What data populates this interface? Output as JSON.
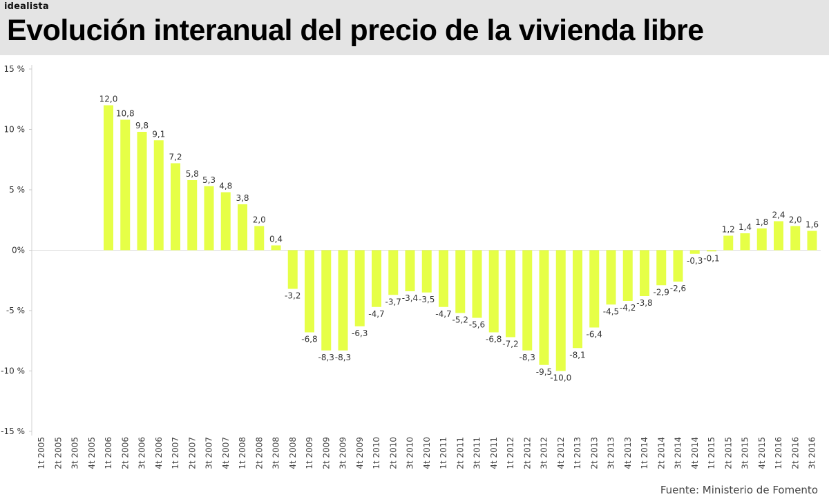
{
  "brand": "idealista",
  "source": "Fuente: Ministerio de Fomento",
  "chart_data": {
    "type": "bar",
    "title": "Evolución interanual del precio de la vivienda libre",
    "xlabel": "",
    "ylabel": "",
    "ylim": [
      -15,
      15
    ],
    "yticks": [
      15,
      10,
      5,
      0,
      -5,
      -10,
      -15
    ],
    "ytick_labels": [
      "15 %",
      "10 %",
      "5 %",
      "0%",
      "-5 %",
      "-10 %",
      "-15 %"
    ],
    "grid": false,
    "bar_color": "#e6ff47",
    "categories": [
      "1t 2005",
      "2t 2005",
      "3t 2005",
      "4t 2005",
      "1t 2006",
      "2t 2006",
      "3t 2006",
      "4t 2006",
      "1t 2007",
      "2t 2007",
      "3t 2007",
      "4t 2007",
      "1t 2008",
      "2t 2008",
      "3t 2008",
      "4t 2008",
      "1t 2009",
      "2t 2009",
      "3t 2009",
      "4t 2009",
      "1t 2010",
      "2t 2010",
      "3t 2010",
      "4t 2010",
      "1t 2011",
      "2t 2011",
      "3t 2011",
      "4t 2011",
      "1t 2012",
      "2t 2012",
      "3t 2012",
      "4t 2012",
      "1t 2013",
      "2t 2013",
      "3t 2013",
      "4t 2013",
      "1t 2014",
      "2t 2014",
      "3t 2014",
      "4t 2014",
      "1t 2015",
      "2t 2015",
      "3t 2015",
      "4t 2015",
      "1t 2016",
      "2t 2016",
      "3t 2016"
    ],
    "values": [
      null,
      null,
      null,
      null,
      12.0,
      10.8,
      9.8,
      9.1,
      7.2,
      5.8,
      5.3,
      4.8,
      3.8,
      2.0,
      0.4,
      -3.2,
      -6.8,
      -8.3,
      -8.3,
      -6.3,
      -4.7,
      -3.7,
      -3.4,
      -3.5,
      -4.7,
      -5.2,
      -5.6,
      -6.8,
      -7.2,
      -8.3,
      -9.5,
      -10.0,
      -8.1,
      -6.4,
      -4.5,
      -4.2,
      -3.8,
      -2.9,
      -2.6,
      -0.3,
      -0.1,
      1.2,
      1.4,
      1.8,
      2.4,
      2.0,
      1.6
    ],
    "value_labels": [
      "",
      "",
      "",
      "",
      "12,0",
      "10,8",
      "9,8",
      "9,1",
      "7,2",
      "5,8",
      "5,3",
      "4,8",
      "3,8",
      "2,0",
      "0,4",
      "-3,2",
      "-6,8",
      "-8,3",
      "-8,3",
      "-6,3",
      "-4,7",
      "-3,7",
      "-3,4",
      "-3,5",
      "-4,7",
      "-5,2",
      "-5,6",
      "-6,8",
      "-7,2",
      "-8,3",
      "-9,5",
      "-10,0",
      "-8,1",
      "-6,4",
      "-4,5",
      "-4,2",
      "-3,8",
      "-2,9",
      "-2,6",
      "-0,3",
      "-0,1",
      "1,2",
      "1,4",
      "1,8",
      "2,4",
      "2,0",
      "1,6"
    ]
  }
}
